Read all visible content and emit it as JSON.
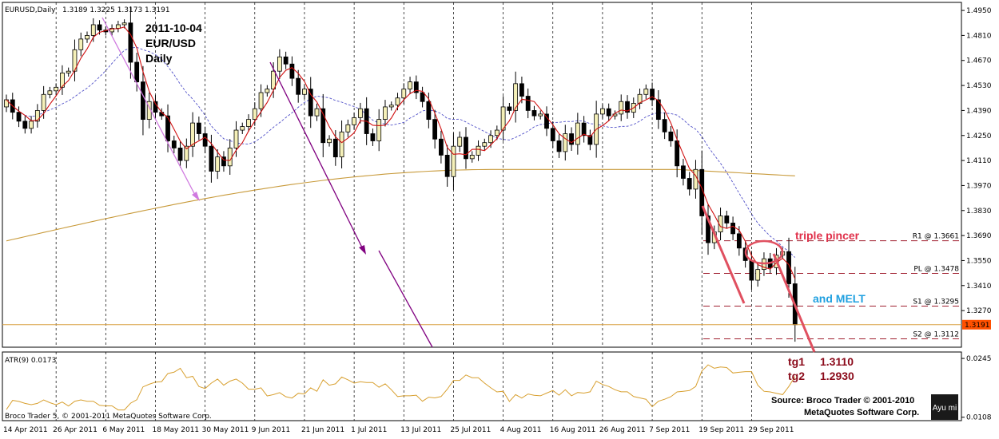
{
  "chart_data": {
    "type": "candlestick",
    "symbol_header": "EURUSD,Daily",
    "ohlc_header": "1.3189 1.3225 1.3173 1.3191",
    "annotation_title": [
      "2011-10-04",
      "EUR/USD",
      "Daily"
    ],
    "price_axis": {
      "ylim": [
        1.3065,
        1.4995
      ],
      "ticks": [
        "1.4950",
        "1.4810",
        "1.4670",
        "1.4530",
        "1.4390",
        "1.4250",
        "1.4110",
        "1.3970",
        "1.3830",
        "1.3690",
        "1.3550",
        "1.3410",
        "1.3270"
      ],
      "tick_values": [
        1.495,
        1.481,
        1.467,
        1.453,
        1.439,
        1.425,
        1.411,
        1.397,
        1.383,
        1.369,
        1.355,
        1.341,
        1.327
      ],
      "current_price": "1.3191",
      "current_value": 1.3191
    },
    "date_labels": [
      "14 Apr 2011",
      "26 Apr 2011",
      "6 May 2011",
      "18 May 2011",
      "30 May 2011",
      "9 Jun 2011",
      "21 Jun 2011",
      "1 Jul 2011",
      "13 Jul 2011",
      "25 Jul 2011",
      "4 Aug 2011",
      "16 Aug 2011",
      "26 Aug 2011",
      "7 Sep 2011",
      "19 Sep 2011",
      "29 Sep 2011"
    ],
    "closes": [
      1.445,
      1.438,
      1.433,
      1.429,
      1.433,
      1.439,
      1.448,
      1.45,
      1.452,
      1.46,
      1.461,
      1.473,
      1.479,
      1.481,
      1.487,
      1.484,
      1.483,
      1.485,
      1.487,
      1.488,
      1.466,
      1.455,
      1.434,
      1.444,
      1.438,
      1.436,
      1.422,
      1.418,
      1.411,
      1.419,
      1.432,
      1.426,
      1.419,
      1.405,
      1.413,
      1.408,
      1.418,
      1.428,
      1.43,
      1.434,
      1.44,
      1.449,
      1.451,
      1.461,
      1.469,
      1.465,
      1.457,
      1.448,
      1.451,
      1.436,
      1.44,
      1.421,
      1.423,
      1.413,
      1.427,
      1.431,
      1.435,
      1.44,
      1.426,
      1.422,
      1.434,
      1.441,
      1.442,
      1.446,
      1.451,
      1.455,
      1.449,
      1.444,
      1.434,
      1.423,
      1.414,
      1.402,
      1.419,
      1.424,
      1.412,
      1.414,
      1.419,
      1.421,
      1.425,
      1.428,
      1.441,
      1.439,
      1.454,
      1.447,
      1.439,
      1.436,
      1.437,
      1.429,
      1.422,
      1.416,
      1.426,
      1.42,
      1.432,
      1.425,
      1.42,
      1.437,
      1.44,
      1.436,
      1.437,
      1.444,
      1.438,
      1.443,
      1.448,
      1.451,
      1.445,
      1.434,
      1.427,
      1.422,
      1.408,
      1.401,
      1.395,
      1.406,
      1.38,
      1.365,
      1.371,
      1.38,
      1.376,
      1.37,
      1.362,
      1.355,
      1.344,
      1.35,
      1.356,
      1.351,
      1.358,
      1.36,
      1.342,
      1.3191
    ],
    "ma_fast_line": "red",
    "ma_slow_line": "dashed blue",
    "ma_long_line": "goldenrod",
    "pivot_levels": [
      {
        "label": "R1 @ 1.3661",
        "value": 1.3661
      },
      {
        "label": "PL @ 1.3478",
        "value": 1.3478
      },
      {
        "label": "S1 @ 1.3295",
        "value": 1.3295
      },
      {
        "label": "S2 @ 1.3112",
        "value": 1.3112
      }
    ],
    "annotations": {
      "triple_pincer": "triple pincer",
      "melt": "and MELT",
      "tg1": "tg1",
      "tg1_val": "1.3110",
      "tg2": "tg2",
      "tg2_val": "1.2930"
    },
    "atr": {
      "label": "ATR(9) 0.0173",
      "ticks": [
        "0.0245",
        "0.0108"
      ],
      "tick_values": [
        0.0245,
        0.0108
      ],
      "ylim": [
        0.01,
        0.026
      ]
    },
    "footer": {
      "left": "Broco Trader 5, © 2001-2011 MetaQuotes Software Corp.",
      "source_line1": "Source: Broco Trader © 2001-2010",
      "source_line2": "MetaQuotes Software Corp.",
      "logo": "Ayu mi"
    }
  }
}
